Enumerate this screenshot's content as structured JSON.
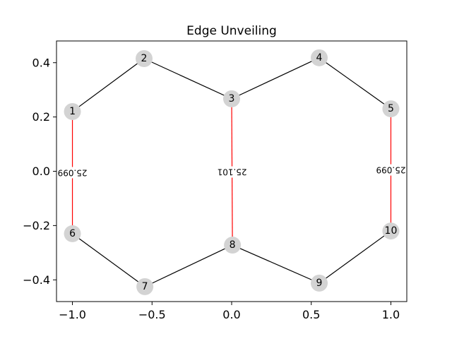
{
  "chart_data": {
    "type": "network",
    "title": "Edge Unveiling",
    "xlim": [
      -1.1,
      1.1
    ],
    "ylim": [
      -0.48,
      0.48
    ],
    "xticks": [
      -1.0,
      -0.5,
      0.0,
      0.5,
      1.0
    ],
    "xtick_labels": [
      "−1.0",
      "−0.5",
      "0.0",
      "0.5",
      "1.0"
    ],
    "yticks": [
      0.4,
      0.2,
      0.0,
      -0.2,
      -0.4
    ],
    "ytick_labels": [
      "0.4",
      "0.2",
      "0.0",
      "−0.2",
      "−0.4"
    ],
    "nodes": [
      {
        "id": "1",
        "x": -1.0,
        "y": 0.22
      },
      {
        "id": "2",
        "x": -0.55,
        "y": 0.415
      },
      {
        "id": "3",
        "x": 0.0,
        "y": 0.267
      },
      {
        "id": "4",
        "x": 0.55,
        "y": 0.418
      },
      {
        "id": "5",
        "x": 1.0,
        "y": 0.23
      },
      {
        "id": "6",
        "x": -1.0,
        "y": -0.23
      },
      {
        "id": "7",
        "x": -0.545,
        "y": -0.425
      },
      {
        "id": "8",
        "x": 0.005,
        "y": -0.272
      },
      {
        "id": "9",
        "x": 0.55,
        "y": -0.412
      },
      {
        "id": "10",
        "x": 1.0,
        "y": -0.22
      }
    ],
    "edges": [
      {
        "source": "1",
        "target": "2",
        "color": "#000000"
      },
      {
        "source": "2",
        "target": "3",
        "color": "#000000"
      },
      {
        "source": "3",
        "target": "4",
        "color": "#000000"
      },
      {
        "source": "4",
        "target": "5",
        "color": "#000000"
      },
      {
        "source": "6",
        "target": "7",
        "color": "#000000"
      },
      {
        "source": "7",
        "target": "8",
        "color": "#000000"
      },
      {
        "source": "8",
        "target": "9",
        "color": "#000000"
      },
      {
        "source": "9",
        "target": "10",
        "color": "#000000"
      },
      {
        "source": "1",
        "target": "6",
        "color": "#ff0000",
        "label": "25.099"
      },
      {
        "source": "3",
        "target": "8",
        "color": "#ff0000",
        "label": "25.101"
      },
      {
        "source": "5",
        "target": "10",
        "color": "#ff0000",
        "label": "25.099"
      }
    ],
    "node_color": "#d3d3d3"
  }
}
